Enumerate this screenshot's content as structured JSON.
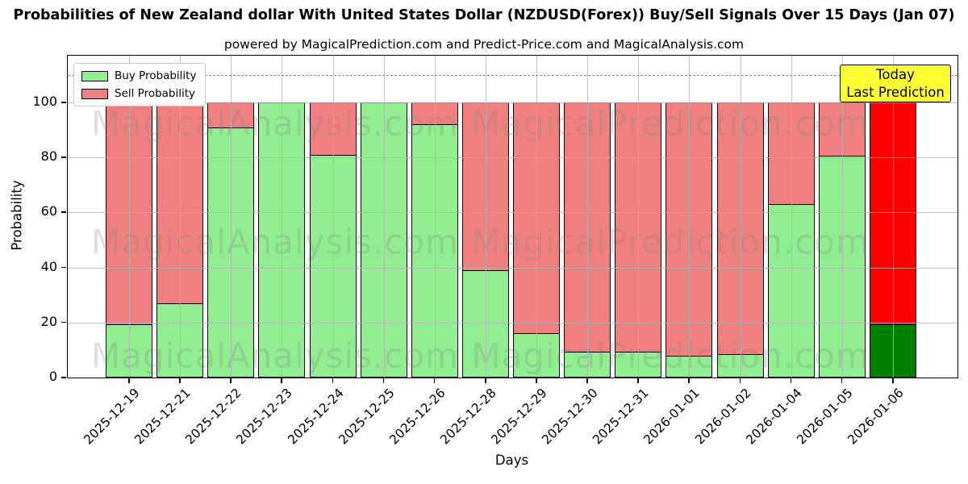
{
  "title": "Probabilities of New Zealand dollar With United States Dollar (NZDUSD(Forex)) Buy/Sell Signals Over 15 Days (Jan 07)",
  "subtitle": "powered by MagicalPrediction.com and Predict-Price.com and MagicalAnalysis.com",
  "legend": {
    "buy_label": "Buy Probability",
    "sell_label": "Sell Probability"
  },
  "annotation": {
    "line1": "Today",
    "line2": "Last Prediction"
  },
  "axes": {
    "x_label": "Days",
    "y_label": "Probability",
    "y_ticks": [
      0,
      20,
      40,
      60,
      80,
      100
    ],
    "ylim": [
      0,
      117
    ],
    "dashed_guide_y": 110,
    "grid": true
  },
  "colors": {
    "buy": "#90ee90",
    "sell": "#f08080",
    "today_buy": "#008000",
    "today_sell": "#ff0000",
    "bar_edge": "#000000",
    "annotation_bg": "#ffff00",
    "grid": "#b0b0b0"
  },
  "watermarks": {
    "left_text": "MagicalAnalysis.com",
    "right_text": "MagicalPrediction.com"
  },
  "chart_data": {
    "type": "bar",
    "stacked": true,
    "title": "Probabilities of New Zealand dollar With United States Dollar (NZDUSD(Forex)) Buy/Sell Signals Over 15 Days (Jan 07)",
    "xlabel": "Days",
    "ylabel": "Probability",
    "ylim": [
      0,
      117
    ],
    "legend_position": "upper left",
    "categories": [
      "2025-12-19",
      "2025-12-21",
      "2025-12-22",
      "2025-12-23",
      "2025-12-24",
      "2025-12-25",
      "2025-12-26",
      "2025-12-28",
      "2025-12-29",
      "2025-12-30",
      "2025-12-31",
      "2026-01-01",
      "2026-01-02",
      "2026-01-04",
      "2026-01-05",
      "2026-01-06"
    ],
    "series": [
      {
        "name": "Buy Probability",
        "values": [
          19.5,
          27,
          91,
          100,
          81,
          100,
          92,
          39,
          16,
          9.5,
          9.5,
          8,
          8.5,
          63,
          80.5,
          19.5
        ]
      },
      {
        "name": "Sell Probability",
        "values": [
          80.5,
          73,
          9,
          0,
          19,
          0,
          8,
          61,
          84,
          90.5,
          90.5,
          92,
          91.5,
          37,
          19.5,
          80.5
        ]
      }
    ],
    "today_index": 15
  }
}
